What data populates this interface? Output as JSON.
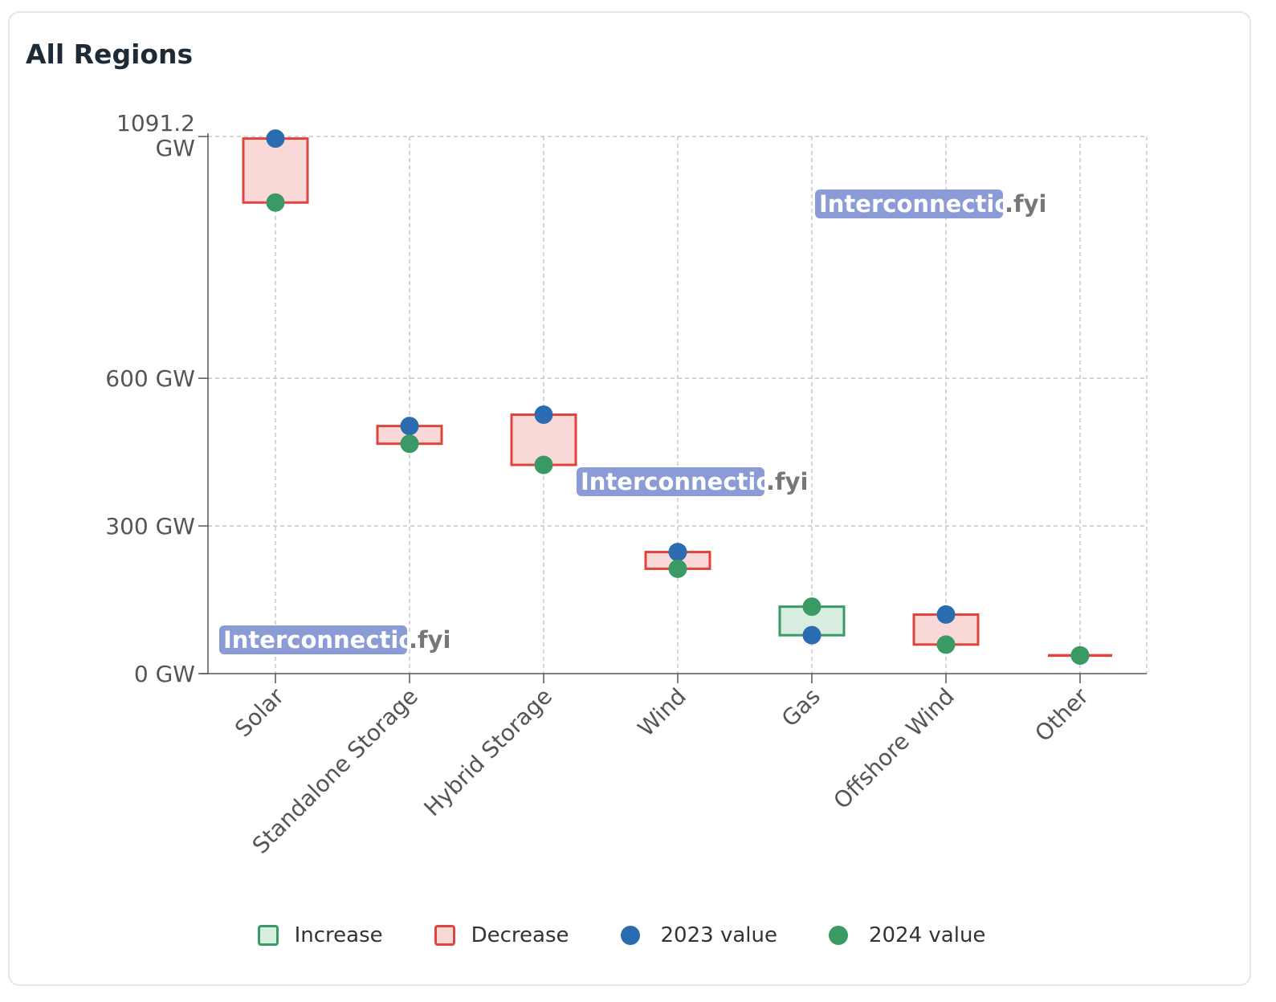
{
  "title": "All Regions",
  "watermark": {
    "brand": "Interconnection",
    "suffix": ".fyi"
  },
  "colors": {
    "increase_stroke": "#3a9a66",
    "increase_fill": "#d6ede0",
    "decrease_stroke": "#e0443e",
    "decrease_fill": "#f9d9d8",
    "v2023": "#2b6cb0",
    "v2024": "#3a9a66",
    "watermark_bg": "#8b9bd6"
  },
  "legend": [
    {
      "key": "increase",
      "label": "Increase",
      "kind": "box",
      "stroke": "#3a9a66",
      "fill": "#d6ede0"
    },
    {
      "key": "decrease",
      "label": "Decrease",
      "kind": "box",
      "stroke": "#e0443e",
      "fill": "#f9d9d8"
    },
    {
      "key": "v2023",
      "label": "2023 value",
      "kind": "dot",
      "color": "#2b6cb0"
    },
    {
      "key": "v2024",
      "label": "2024 value",
      "kind": "dot",
      "color": "#3a9a66"
    }
  ],
  "chart_data": {
    "type": "bar",
    "subtype": "floating-change",
    "title": "All Regions",
    "xlabel": "",
    "ylabel": "",
    "ylim": [
      0,
      1091.2
    ],
    "y_ticks": [
      {
        "value": 0,
        "label": "0 GW"
      },
      {
        "value": 300,
        "label": "300 GW"
      },
      {
        "value": 600,
        "label": "600 GW"
      },
      {
        "value": 1091.2,
        "label": "1091.2 GW"
      }
    ],
    "grid": true,
    "legend_position": "bottom",
    "categories": [
      "Solar",
      "Standalone Storage",
      "Hybrid Storage",
      "Wind",
      "Gas",
      "Offshore Wind",
      "Other"
    ],
    "series": [
      {
        "name": "2023 value",
        "values": [
          1087,
          503,
          526,
          247,
          78,
          120,
          37
        ]
      },
      {
        "name": "2024 value",
        "values": [
          957,
          467,
          424,
          213,
          136,
          59,
          37
        ]
      }
    ]
  }
}
